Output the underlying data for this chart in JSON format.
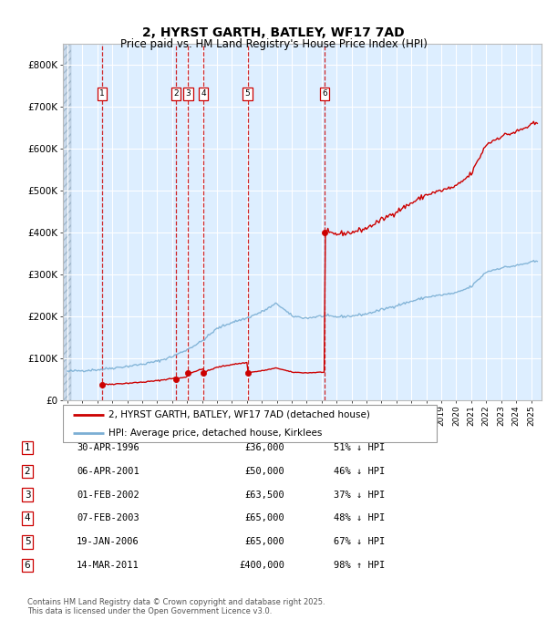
{
  "title": "2, HYRST GARTH, BATLEY, WF17 7AD",
  "subtitle": "Price paid vs. HM Land Registry's House Price Index (HPI)",
  "legend_property": "2, HYRST GARTH, BATLEY, WF17 7AD (detached house)",
  "legend_hpi": "HPI: Average price, detached house, Kirklees",
  "footer1": "Contains HM Land Registry data © Crown copyright and database right 2025.",
  "footer2": "This data is licensed under the Open Government Licence v3.0.",
  "property_color": "#cc0000",
  "hpi_color": "#7bafd4",
  "transactions": [
    {
      "id": 1,
      "date": "30-APR-1996",
      "year": 1996.33,
      "price": 36000,
      "pct": "51%",
      "dir": "↓"
    },
    {
      "id": 2,
      "date": "06-APR-2001",
      "year": 2001.27,
      "price": 50000,
      "pct": "46%",
      "dir": "↓"
    },
    {
      "id": 3,
      "date": "01-FEB-2002",
      "year": 2002.08,
      "price": 63500,
      "pct": "37%",
      "dir": "↓"
    },
    {
      "id": 4,
      "date": "07-FEB-2003",
      "year": 2003.1,
      "price": 65000,
      "pct": "48%",
      "dir": "↓"
    },
    {
      "id": 5,
      "date": "19-JAN-2006",
      "year": 2006.05,
      "price": 65000,
      "pct": "67%",
      "dir": "↓"
    },
    {
      "id": 6,
      "date": "14-MAR-2011",
      "year": 2011.2,
      "price": 400000,
      "pct": "98%",
      "dir": "↑"
    }
  ],
  "ylim": [
    0,
    850000
  ],
  "xlim_start": 1993.7,
  "xlim_end": 2025.7,
  "yticks": [
    0,
    100000,
    200000,
    300000,
    400000,
    500000,
    600000,
    700000,
    800000
  ],
  "ytick_labels": [
    "£0",
    "£100K",
    "£200K",
    "£300K",
    "£400K",
    "£500K",
    "£600K",
    "£700K",
    "£800K"
  ],
  "background_color": "#ddeeff",
  "grid_color": "#ffffff",
  "hpi_anchors_t": [
    1994.0,
    1995.0,
    1996.0,
    1997.0,
    1998.0,
    1999.0,
    2000.0,
    2001.0,
    2002.0,
    2003.0,
    2004.0,
    2005.0,
    2006.0,
    2007.0,
    2008.0,
    2009.0,
    2010.0,
    2011.0,
    2012.0,
    2013.0,
    2014.0,
    2015.0,
    2016.0,
    2017.0,
    2018.0,
    2019.0,
    2020.0,
    2021.0,
    2022.0,
    2023.0,
    2024.0,
    2025.25
  ],
  "hpi_anchors_v": [
    68000,
    70000,
    72000,
    76000,
    80000,
    85000,
    92000,
    103000,
    120000,
    140000,
    170000,
    185000,
    195000,
    210000,
    230000,
    200000,
    195000,
    200000,
    198000,
    200000,
    205000,
    215000,
    225000,
    235000,
    245000,
    250000,
    255000,
    270000,
    305000,
    315000,
    320000,
    330000
  ]
}
